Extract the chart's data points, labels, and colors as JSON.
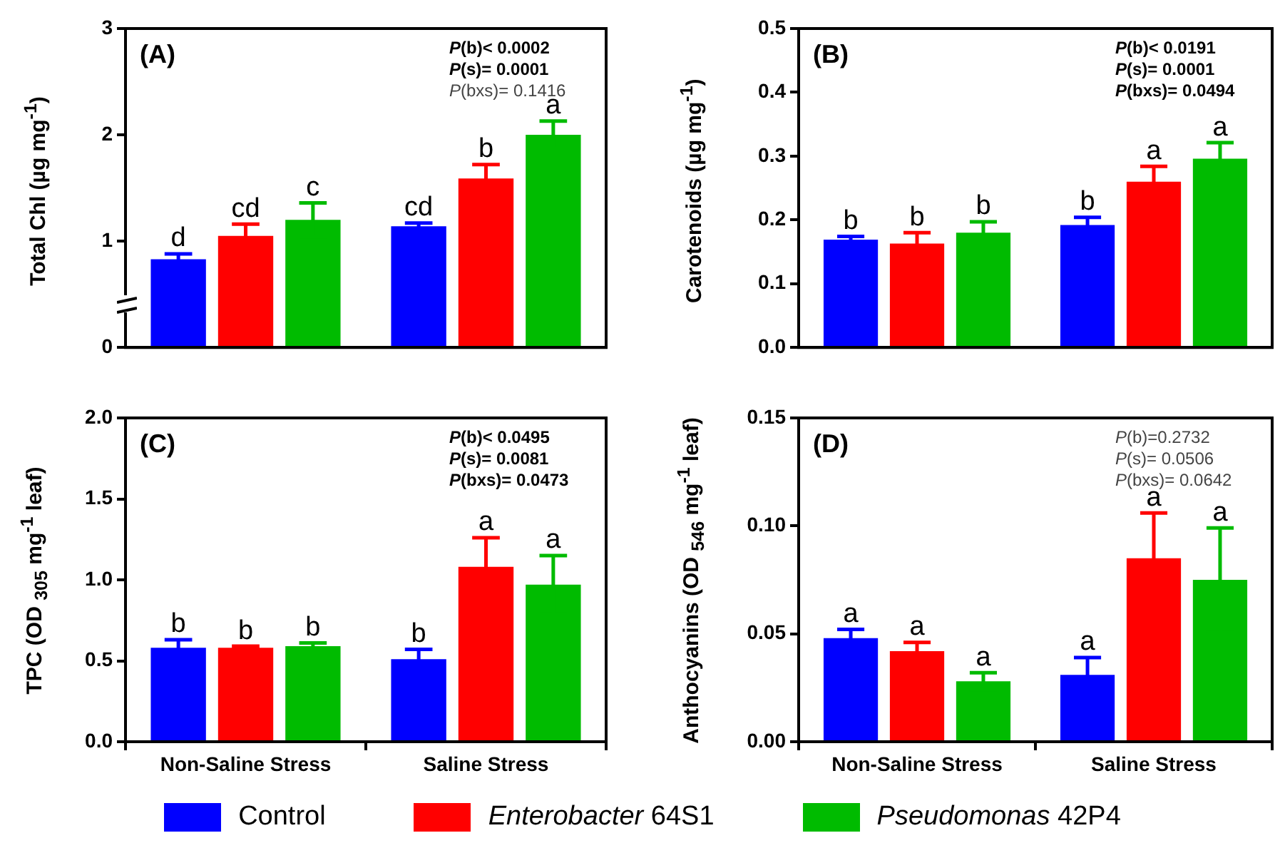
{
  "chart_data": [
    {
      "type": "bar",
      "title": "(A)",
      "ylabel": "Total Chl (µg mg$^{-1}$)",
      "categories": [
        "Non-Saline Stress",
        "Saline Stress"
      ],
      "tick_labels": "y",
      "ylim": [
        0,
        3
      ],
      "yticks": [
        0,
        1,
        2,
        3
      ],
      "legend": "bottom",
      "annotations": [
        "P(b)< 0.0002",
        "P(s)= 0.0001",
        "P(bxs)= 0.1416"
      ],
      "series": [
        {
          "name": "Control",
          "color": "#0000ff",
          "values": [
            0.83,
            1.14
          ],
          "errors": [
            0.05,
            0.03
          ],
          "value_labels": [
            "d",
            "cd"
          ]
        },
        {
          "name": "Enterobacter 64S1",
          "color": "#ff0000",
          "values": [
            1.05,
            1.59
          ],
          "errors": [
            0.11,
            0.13
          ],
          "value_labels": [
            "cd",
            "b"
          ]
        },
        {
          "name": "Pseudomonas 42P4",
          "color": "#00bb00",
          "values": [
            1.2,
            2.0
          ],
          "errors": [
            0.16,
            0.13
          ],
          "value_labels": [
            "c",
            "a"
          ]
        }
      ]
    },
    {
      "type": "bar",
      "title": "(B)",
      "ylabel": "Carotenoids (µg mg$^{-1}$)",
      "categories": [
        "Non-Saline Stress",
        "Saline Stress"
      ],
      "tick_labels": "y",
      "ylim": [
        0,
        0.5
      ],
      "yticks": [
        {
          "value": 0,
          "label": "0.0"
        },
        0.1,
        0.2,
        0.3,
        0.4,
        0.5
      ],
      "legend": "bottom",
      "annotations": [
        "P(b)< 0.0191",
        "P(s)= 0.0001",
        "P(bxs)= 0.0494"
      ],
      "series": [
        {
          "name": "Control",
          "color": "#0000ff",
          "values": [
            0.169,
            0.192
          ],
          "errors": [
            0.005,
            0.012
          ],
          "value_labels": [
            "b",
            "b"
          ]
        },
        {
          "name": "Enterobacter 64S1",
          "color": "#ff0000",
          "values": [
            0.163,
            0.26
          ],
          "errors": [
            0.017,
            0.024
          ],
          "value_labels": [
            "b",
            "a"
          ]
        },
        {
          "name": "Pseudomonas 42P4",
          "color": "#00bb00",
          "values": [
            0.18,
            0.296
          ],
          "errors": [
            0.017,
            0.025
          ],
          "value_labels": [
            "b",
            "a"
          ]
        }
      ]
    },
    {
      "type": "bar",
      "title": "(C)",
      "ylabel": "TPC (OD $_{305}$ mg$^{-1}$ leaf)",
      "categories": [
        "Non-Saline Stress",
        "Saline Stress"
      ],
      "ylim": [
        0,
        2
      ],
      "yticks": [
        {
          "value": 0,
          "label": "0.0"
        },
        0.5,
        {
          "value": 1,
          "label": "1.0"
        },
        1.5,
        {
          "value": 2,
          "label": "2.0"
        }
      ],
      "legend": "bottom",
      "annotations": [
        "P(b)< 0.0495",
        "P(s)= 0.0081",
        "P(bxs)= 0.0473"
      ],
      "series": [
        {
          "name": "Control",
          "color": "#0000ff",
          "values": [
            0.58,
            0.51
          ],
          "errors": [
            0.05,
            0.06
          ],
          "value_labels": [
            "b",
            "b"
          ]
        },
        {
          "name": "Enterobacter 64S1",
          "color": "#ff0000",
          "values": [
            0.58,
            1.08
          ],
          "errors": [
            0.01,
            0.18
          ],
          "value_labels": [
            "b",
            "a"
          ]
        },
        {
          "name": "Pseudomonas 42P4",
          "color": "#00bb00",
          "values": [
            0.59,
            0.97
          ],
          "errors": [
            0.02,
            0.18
          ],
          "value_labels": [
            "b",
            "a"
          ]
        }
      ]
    },
    {
      "type": "bar",
      "title": "(D)",
      "ylabel": "Anthocyanins (OD $_{546}$ mg$^{-1}$ leaf)",
      "categories": [
        "Non-Saline Stress",
        "Saline Stress"
      ],
      "ylim": [
        0,
        0.15
      ],
      "yticks": [
        {
          "value": 0,
          "label": "0.00"
        },
        0.05,
        {
          "value": 0.1,
          "label": "0.10"
        },
        0.15
      ],
      "legend": "bottom",
      "annotations": [
        "P(b)=0.2732",
        "P(s)= 0.0506",
        "P(bxs)= 0.0642"
      ],
      "series": [
        {
          "name": "Control",
          "color": "#0000ff",
          "values": [
            0.048,
            0.031
          ],
          "errors": [
            0.004,
            0.008
          ],
          "value_labels": [
            "a",
            "a"
          ]
        },
        {
          "name": "Enterobacter 64S1",
          "color": "#ff0000",
          "values": [
            0.042,
            0.085
          ],
          "errors": [
            0.004,
            0.021
          ],
          "value_labels": [
            "a",
            "a"
          ]
        },
        {
          "name": "Pseudomonas 42P4",
          "color": "#00bb00",
          "values": [
            0.028,
            0.075
          ],
          "errors": [
            0.004,
            0.024
          ],
          "value_labels": [
            "a",
            "a"
          ]
        }
      ]
    }
  ]
}
